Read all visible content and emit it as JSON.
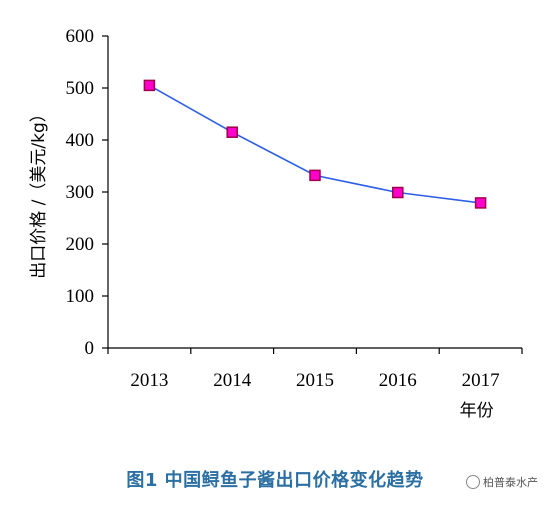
{
  "chart_data": {
    "type": "line",
    "categories": [
      "2013",
      "2014",
      "2015",
      "2016",
      "2017"
    ],
    "series": [
      {
        "values": [
          505,
          415,
          332,
          299,
          279
        ]
      }
    ],
    "ylabel": "出口价格 /（美元/kg）",
    "xlabel": "年份",
    "ylim": [
      0,
      600
    ],
    "yticks": [
      0,
      100,
      200,
      300,
      400,
      500,
      600
    ],
    "grid": false,
    "line_color": "#2f5fe6",
    "marker_fill": "#ff00cc",
    "marker_edge": "#a0004a"
  },
  "caption": "图1  中国鲟鱼子酱出口价格变化趋势",
  "watermark": "柏普泰水产"
}
